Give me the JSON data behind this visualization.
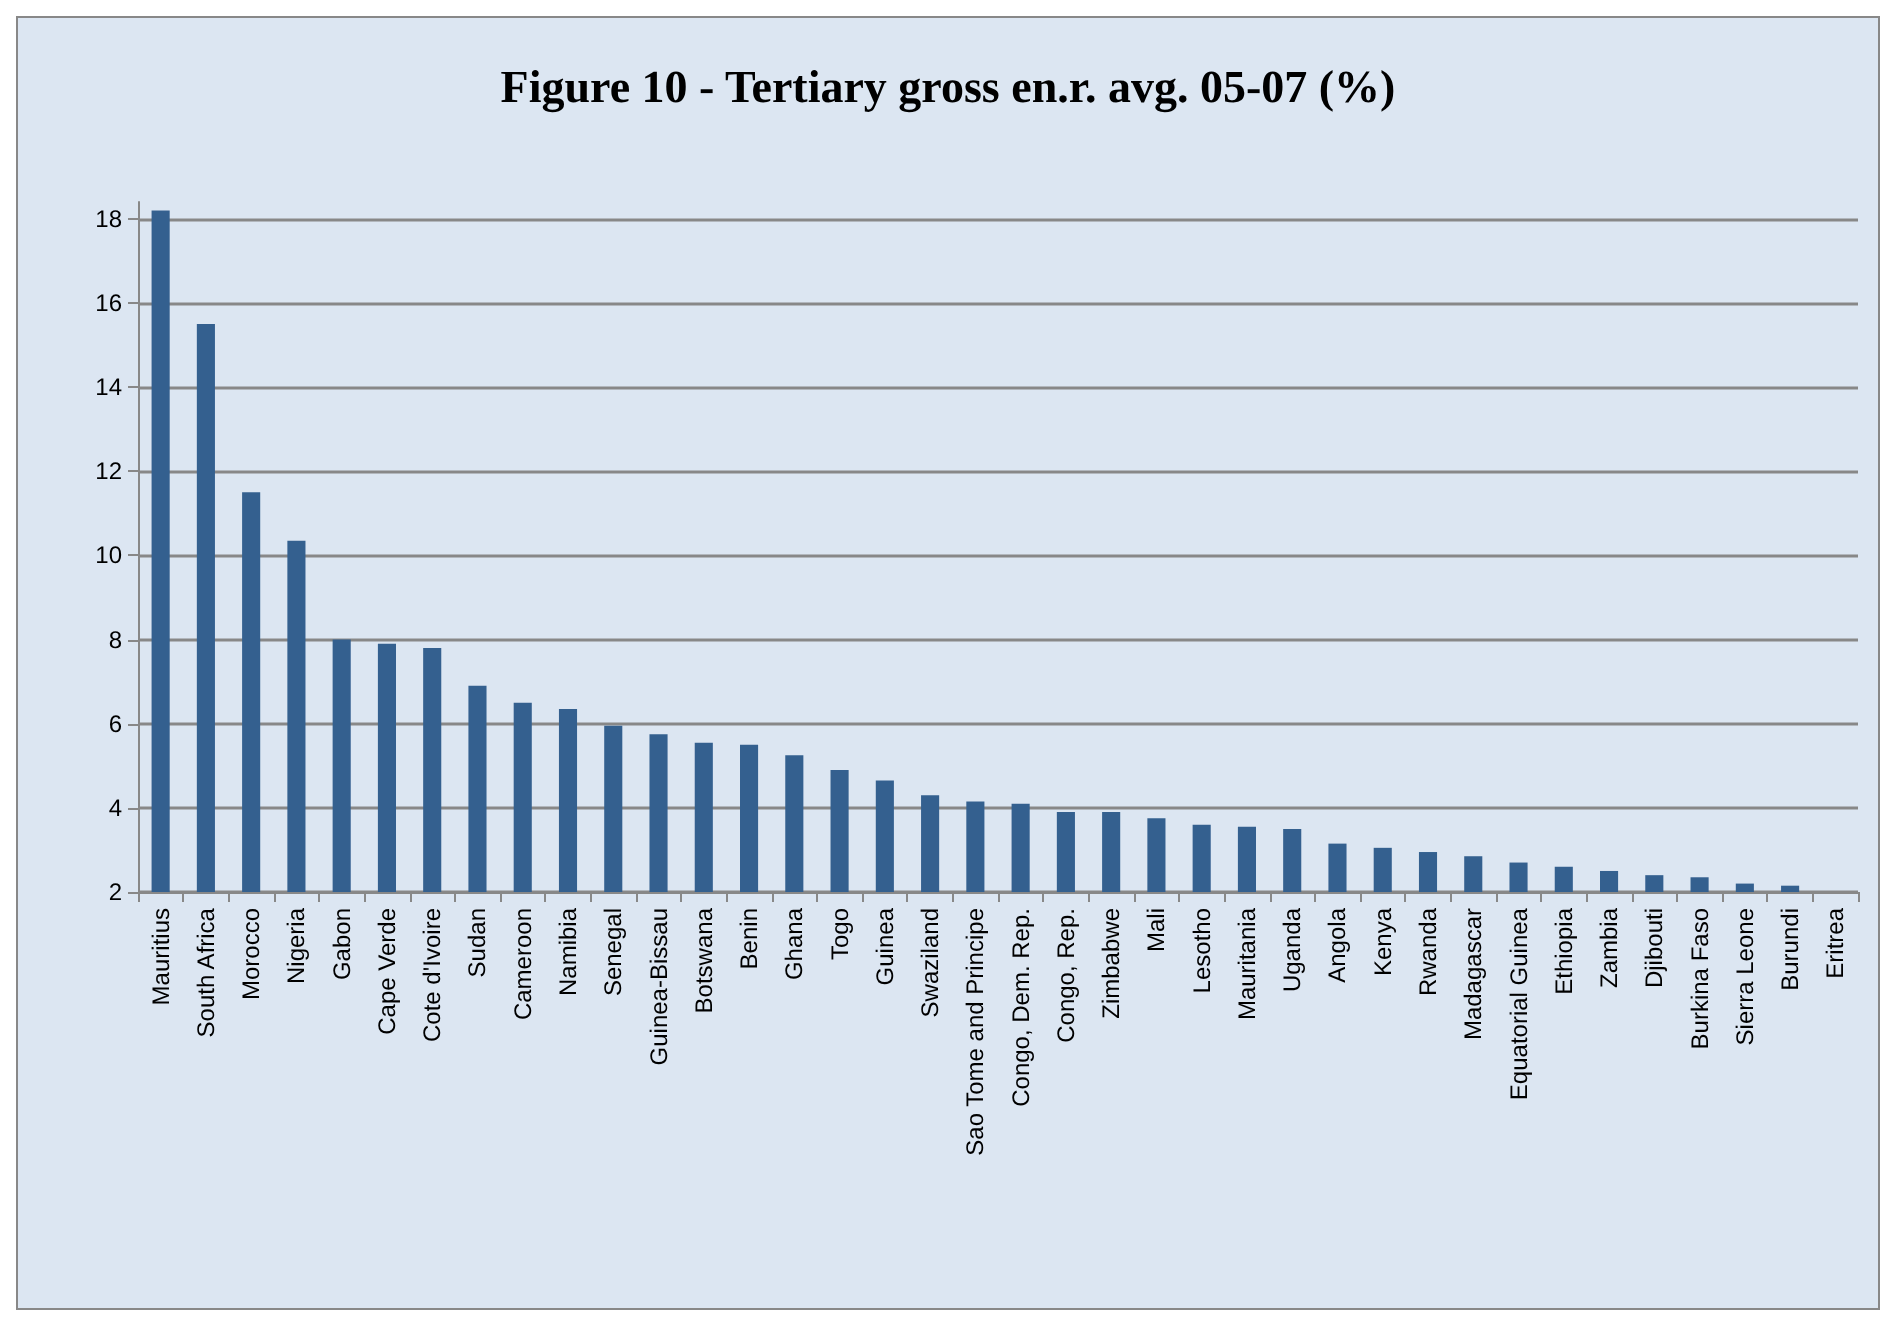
{
  "chart_data": {
    "type": "bar",
    "title": "Figure 10 - Tertiary gross en.r. avg. 05-07 (%)",
    "categories": [
      "Mauritius",
      "South Africa",
      "Morocco",
      "Nigeria",
      "Gabon",
      "Cape Verde",
      "Cote d'Ivoire",
      "Sudan",
      "Cameroon",
      "Namibia",
      "Senegal",
      "Guinea-Bissau",
      "Botswana",
      "Benin",
      "Ghana",
      "Togo",
      "Guinea",
      "Swaziland",
      "Sao Tome and Principe",
      "Congo, Dem. Rep.",
      "Congo, Rep.",
      "Zimbabwe",
      "Mali",
      "Lesotho",
      "Mauritania",
      "Uganda",
      "Angola",
      "Kenya",
      "Rwanda",
      "Madagascar",
      "Equatorial Guinea",
      "Ethiopia",
      "Zambia",
      "Djibouti",
      "Burkina Faso",
      "Sierra Leone",
      "Burundi",
      "Eritrea"
    ],
    "values": [
      18.2,
      15.5,
      11.5,
      10.35,
      8.0,
      7.9,
      7.8,
      6.9,
      6.5,
      6.35,
      5.95,
      5.75,
      5.55,
      5.5,
      5.25,
      4.9,
      4.65,
      4.3,
      4.15,
      4.1,
      3.9,
      3.9,
      3.75,
      3.6,
      3.55,
      3.5,
      3.15,
      3.05,
      2.95,
      2.85,
      2.7,
      2.6,
      2.5,
      2.4,
      2.35,
      2.2,
      2.15,
      null
    ],
    "color": "#34608f",
    "ylim": [
      2,
      18.4
    ],
    "yticks": [
      2,
      4,
      6,
      8,
      10,
      12,
      14,
      16,
      18
    ],
    "grid": "y"
  }
}
